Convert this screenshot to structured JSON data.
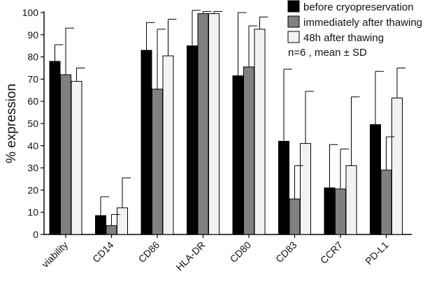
{
  "chart_data": {
    "type": "bar",
    "title": "",
    "xlabel": "",
    "ylabel": "% expression",
    "ylim": [
      0,
      100
    ],
    "yticks": [
      0,
      10,
      20,
      30,
      40,
      50,
      60,
      70,
      80,
      90,
      100
    ],
    "grid": false,
    "legend_position": "top-right",
    "note": "n=6 , mean ± SD",
    "categories": [
      "viability",
      "CD14",
      "CD86",
      "HLA-DR",
      "CD80",
      "CD83",
      "CCR7",
      "PD-L1"
    ],
    "series": [
      {
        "name": "before cryopreservation",
        "color": "#000000",
        "values": [
          78,
          8.5,
          83,
          85,
          71.5,
          42,
          21,
          49.5
        ],
        "sd": [
          7.5,
          8.5,
          12.5,
          16,
          28.5,
          32.5,
          19.5,
          24
        ]
      },
      {
        "name": "immediately after thawing",
        "color": "#808080",
        "values": [
          72,
          4,
          65.5,
          99.5,
          75.5,
          16,
          20.5,
          29
        ],
        "sd": [
          21,
          5,
          27,
          1,
          18.5,
          15,
          18,
          15
        ]
      },
      {
        "name": "48h after thawing",
        "color": "#f2f2f2",
        "values": [
          69,
          12,
          80.5,
          99.5,
          92.5,
          41,
          31,
          61.5
        ],
        "sd": [
          6,
          13.5,
          16.5,
          1,
          5.5,
          23.5,
          31,
          13.5
        ]
      }
    ]
  }
}
